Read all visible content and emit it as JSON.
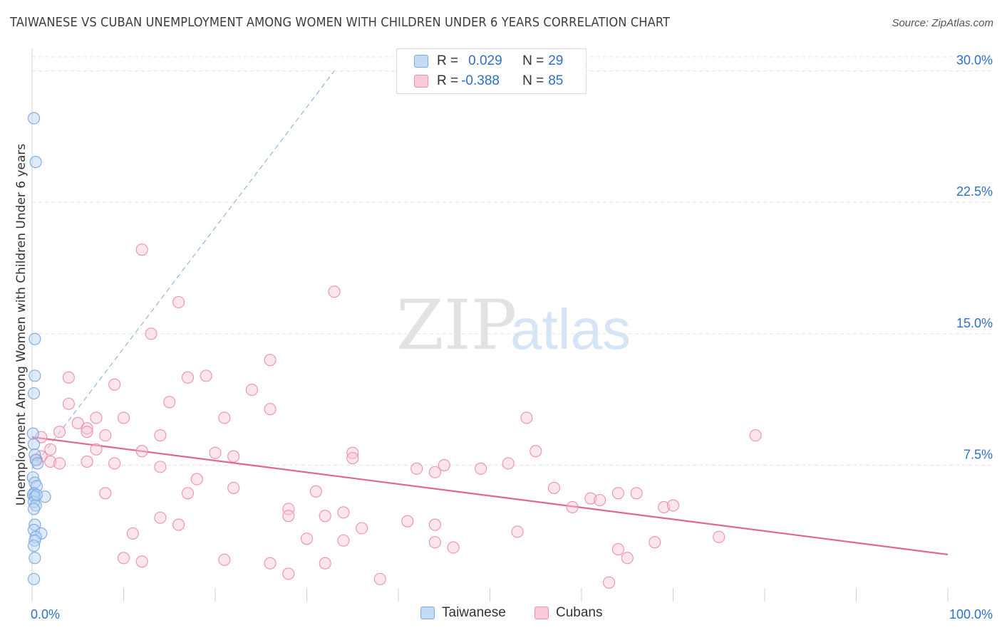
{
  "header": {
    "title": "TAIWANESE VS CUBAN UNEMPLOYMENT AMONG WOMEN WITH CHILDREN UNDER 6 YEARS CORRELATION CHART",
    "source": "Source: ZipAtlas.com"
  },
  "watermark": {
    "zip": "ZIP",
    "atlas": "atlas"
  },
  "legend": {
    "rows": [
      {
        "r_label": "R = ",
        "r_value": "0.029",
        "n_label": "N = ",
        "n_value": "29",
        "color": "#a9c9f0"
      },
      {
        "r_label": "R = ",
        "r_value": "-0.388",
        "n_label": "N = ",
        "n_value": "85",
        "color": "#f6b9cc"
      }
    ]
  },
  "chart_data": {
    "type": "scatter",
    "title": "TAIWANESE VS CUBAN UNEMPLOYMENT AMONG WOMEN WITH CHILDREN UNDER 6 YEARS CORRELATION CHART",
    "xlabel": "",
    "ylabel": "Unemployment Among Women with Children Under 6 years",
    "xlim": [
      0,
      100
    ],
    "ylim": [
      0,
      31
    ],
    "x_tick_labels": [
      "0.0%",
      "100.0%"
    ],
    "y_ticks": [
      7.5,
      15.0,
      22.5,
      30.0
    ],
    "y_tick_labels": [
      "7.5%",
      "15.0%",
      "22.5%",
      "30.0%"
    ],
    "grid": true,
    "series": [
      {
        "name": "Taiwanese",
        "color": "#7aa9e3",
        "fill": "#b9d3f2",
        "points": [
          [
            0.2,
            27.3
          ],
          [
            0.4,
            24.8
          ],
          [
            0.3,
            14.7
          ],
          [
            0.3,
            12.6
          ],
          [
            0.2,
            11.6
          ],
          [
            0.1,
            9.3
          ],
          [
            0.2,
            8.7
          ],
          [
            0.3,
            8.1
          ],
          [
            0.4,
            7.8
          ],
          [
            0.6,
            7.6
          ],
          [
            0.1,
            6.8
          ],
          [
            0.3,
            6.5
          ],
          [
            0.5,
            6.3
          ],
          [
            0.2,
            5.9
          ],
          [
            0.1,
            5.8
          ],
          [
            0.3,
            5.7
          ],
          [
            1.4,
            5.7
          ],
          [
            0.2,
            5.4
          ],
          [
            0.4,
            5.2
          ],
          [
            0.2,
            5.0
          ],
          [
            0.3,
            4.1
          ],
          [
            0.2,
            3.8
          ],
          [
            1.0,
            3.6
          ],
          [
            0.4,
            3.4
          ],
          [
            0.3,
            3.2
          ],
          [
            0.2,
            2.9
          ],
          [
            0.3,
            2.2
          ],
          [
            0.2,
            1.0
          ],
          [
            0.5,
            5.8
          ]
        ],
        "trend": {
          "x": [
            0,
            33
          ],
          "y": [
            7.3,
            30.0
          ],
          "style": "dashed"
        }
      },
      {
        "name": "Cubans",
        "color": "#ee8fab",
        "fill": "#f8c8d7",
        "points": [
          [
            12,
            19.8
          ],
          [
            33,
            17.4
          ],
          [
            16,
            16.8
          ],
          [
            13,
            15.0
          ],
          [
            26,
            13.5
          ],
          [
            4,
            12.5
          ],
          [
            19,
            12.6
          ],
          [
            17,
            12.5
          ],
          [
            9,
            12.1
          ],
          [
            24,
            11.8
          ],
          [
            4,
            11.0
          ],
          [
            15,
            11.1
          ],
          [
            26,
            10.7
          ],
          [
            7,
            10.2
          ],
          [
            10,
            10.2
          ],
          [
            21,
            10.2
          ],
          [
            54,
            10.2
          ],
          [
            5,
            9.9
          ],
          [
            6,
            9.6
          ],
          [
            3,
            9.4
          ],
          [
            6,
            9.4
          ],
          [
            8,
            9.2
          ],
          [
            14,
            9.2
          ],
          [
            1,
            9.1
          ],
          [
            79,
            9.2
          ],
          [
            2,
            8.4
          ],
          [
            7,
            8.4
          ],
          [
            12,
            8.3
          ],
          [
            20,
            8.2
          ],
          [
            22,
            8.0
          ],
          [
            35,
            8.2
          ],
          [
            55,
            8.3
          ],
          [
            1,
            8.0
          ],
          [
            0.5,
            7.8
          ],
          [
            2,
            7.7
          ],
          [
            3,
            7.6
          ],
          [
            6,
            7.7
          ],
          [
            9,
            7.6
          ],
          [
            14,
            7.4
          ],
          [
            35,
            7.9
          ],
          [
            42,
            7.3
          ],
          [
            45,
            7.5
          ],
          [
            49,
            7.3
          ],
          [
            52,
            7.6
          ],
          [
            44,
            7.1
          ],
          [
            18,
            6.7
          ],
          [
            17,
            5.9
          ],
          [
            8,
            5.9
          ],
          [
            22,
            6.2
          ],
          [
            31,
            6.0
          ],
          [
            57,
            6.2
          ],
          [
            64,
            5.9
          ],
          [
            66,
            5.9
          ],
          [
            61,
            5.6
          ],
          [
            62,
            5.5
          ],
          [
            59,
            5.1
          ],
          [
            69,
            5.1
          ],
          [
            70,
            5.2
          ],
          [
            28,
            5.0
          ],
          [
            34,
            4.8
          ],
          [
            14,
            4.5
          ],
          [
            28,
            4.6
          ],
          [
            32,
            4.6
          ],
          [
            41,
            4.3
          ],
          [
            44,
            4.1
          ],
          [
            16,
            4.1
          ],
          [
            36,
            3.9
          ],
          [
            53,
            3.7
          ],
          [
            11,
            3.6
          ],
          [
            30,
            3.3
          ],
          [
            34,
            3.2
          ],
          [
            44,
            3.1
          ],
          [
            68,
            3.1
          ],
          [
            75,
            3.4
          ],
          [
            46,
            2.8
          ],
          [
            64,
            2.7
          ],
          [
            65,
            2.2
          ],
          [
            10,
            2.2
          ],
          [
            12,
            2.0
          ],
          [
            21,
            2.1
          ],
          [
            26,
            1.9
          ],
          [
            32,
            1.9
          ],
          [
            28,
            1.3
          ],
          [
            38,
            1.0
          ],
          [
            63,
            0.8
          ]
        ],
        "trend": {
          "x": [
            0,
            100
          ],
          "y": [
            9.1,
            2.4
          ],
          "style": "solid"
        }
      }
    ]
  }
}
